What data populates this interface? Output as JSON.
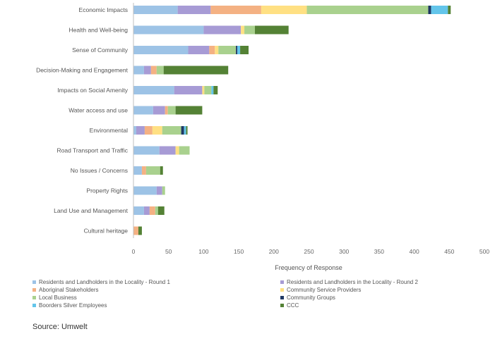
{
  "chart_data": {
    "type": "bar",
    "orientation": "horizontal",
    "stacked": true,
    "categories": [
      "Economic Impacts",
      "Health and Well-being",
      "Sense of Community",
      "Decision-Making and Engagement",
      "Impacts on Social Amenity",
      "Water access and use",
      "Environmental",
      "Road Transport and Traffic",
      "No Issues / Concerns",
      "Property Rights",
      "Land Use and Management",
      "Cultural heritage"
    ],
    "series": [
      {
        "name": "Residents and Landholders in the Locality - Round 1",
        "color": "#9dc3e6",
        "values": [
          63,
          100,
          78,
          15,
          58,
          28,
          4,
          37,
          12,
          33,
          15,
          0
        ]
      },
      {
        "name": "Residents and Landholders in the Locality - Round 2",
        "color": "#a79bd5",
        "values": [
          47,
          53,
          30,
          10,
          40,
          17,
          12,
          23,
          0,
          8,
          8,
          0
        ]
      },
      {
        "name": "Aboriginal Stakeholders",
        "color": "#f4b183",
        "values": [
          72,
          0,
          8,
          8,
          0,
          4,
          11,
          0,
          6,
          0,
          8,
          7
        ]
      },
      {
        "name": "Community Service Providers",
        "color": "#ffe083",
        "values": [
          65,
          5,
          5,
          0,
          3,
          0,
          14,
          5,
          0,
          0,
          0,
          0
        ]
      },
      {
        "name": "Local Business",
        "color": "#a9d18e",
        "values": [
          173,
          15,
          25,
          10,
          10,
          11,
          27,
          15,
          20,
          4,
          4,
          0
        ]
      },
      {
        "name": "Community Groups",
        "color": "#1f3864",
        "values": [
          4,
          0,
          2,
          0,
          0,
          0,
          4,
          0,
          0,
          0,
          0,
          0
        ]
      },
      {
        "name": "Boorders Silver Employees",
        "color": "#63c5ea",
        "values": [
          24,
          0,
          4,
          0,
          3,
          0,
          3,
          0,
          0,
          0,
          0,
          0
        ]
      },
      {
        "name": "CCC",
        "color": "#548235",
        "values": [
          4,
          48,
          12,
          92,
          6,
          38,
          2,
          0,
          4,
          0,
          9,
          5
        ]
      }
    ],
    "xlabel": "Frequency of Response",
    "ylabel": "",
    "xlim": [
      0,
      500
    ],
    "xticks": [
      0,
      50,
      100,
      150,
      200,
      250,
      300,
      350,
      400,
      450,
      500
    ],
    "grid": false,
    "legend_position": "bottom"
  },
  "source_text": "Source: Umwelt"
}
